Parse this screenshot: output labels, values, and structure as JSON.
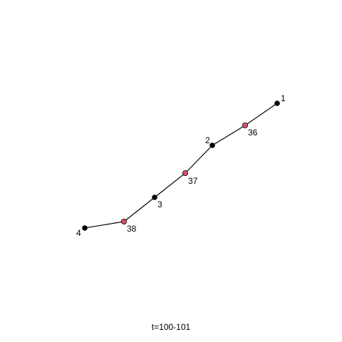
{
  "caption": "t=100-101",
  "colors": {
    "edge": "#000000",
    "node_primary": "#000000",
    "node_secondary": "#d9506a",
    "node_outline": "#000000"
  },
  "nodes": [
    {
      "id": "1",
      "label": "1",
      "kind": "primary"
    },
    {
      "id": "36",
      "label": "36",
      "kind": "secondary"
    },
    {
      "id": "2",
      "label": "2",
      "kind": "primary"
    },
    {
      "id": "37",
      "label": "37",
      "kind": "secondary"
    },
    {
      "id": "3",
      "label": "3",
      "kind": "primary"
    },
    {
      "id": "38",
      "label": "38",
      "kind": "secondary"
    },
    {
      "id": "4",
      "label": "4",
      "kind": "primary"
    }
  ],
  "edges": [
    {
      "from": "1",
      "to": "36"
    },
    {
      "from": "36",
      "to": "2"
    },
    {
      "from": "2",
      "to": "37"
    },
    {
      "from": "37",
      "to": "3"
    },
    {
      "from": "3",
      "to": "38"
    },
    {
      "from": "38",
      "to": "4"
    }
  ]
}
